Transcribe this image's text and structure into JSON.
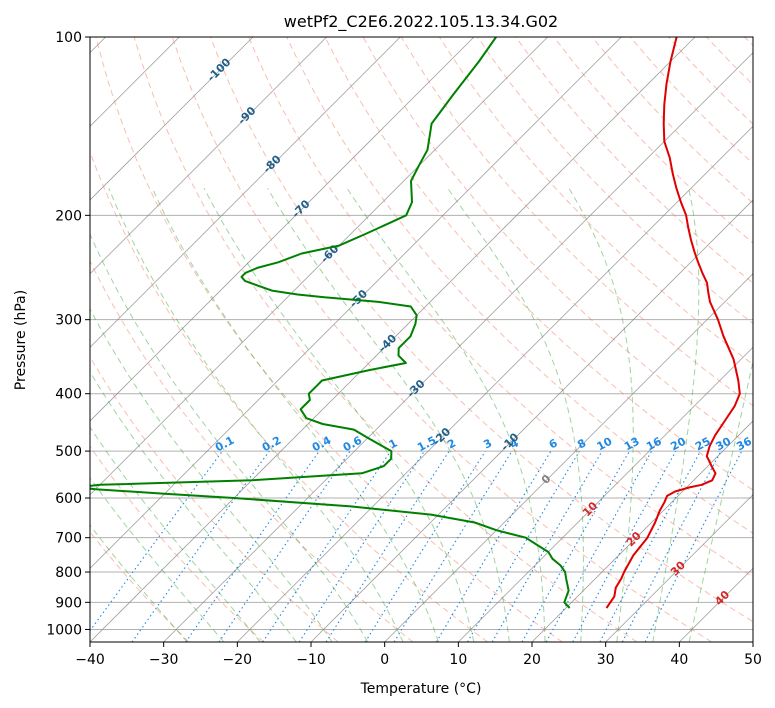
{
  "chart_data": {
    "type": "line",
    "title": "wetPf2_C2E6.2022.105.13.34.G02",
    "xlabel": "Temperature (°C)",
    "ylabel": "Pressure (hPa)",
    "xlim": [
      -40,
      50
    ],
    "ylim": [
      1050,
      100
    ],
    "x_ticks": [
      -40,
      -30,
      -20,
      -10,
      0,
      10,
      20,
      30,
      40,
      50
    ],
    "x_tick_labels": [
      "−40",
      "−30",
      "−20",
      "−10",
      "0",
      "10",
      "20",
      "30",
      "40",
      "50"
    ],
    "y_ticks": [
      100,
      200,
      300,
      400,
      500,
      600,
      700,
      800,
      900,
      1000
    ],
    "y_tick_labels": [
      "100",
      "200",
      "300",
      "400",
      "500",
      "600",
      "700",
      "800",
      "900",
      "1000"
    ],
    "grid": true,
    "colors": {
      "temperature": "#e00000",
      "dewpoint": "#008000",
      "dry_adiabat": "#f08060",
      "moist_adiabat": "#2ca02c",
      "mixing_ratio": "#1e88e5",
      "isotherm": "#808080",
      "isotherm_label": "#1f5f8b",
      "positive_label": "#d62728",
      "zero_label": "#808080",
      "mixing_label": "#1e88e5"
    },
    "isotherm_labels": [
      "-100",
      "-90",
      "-80",
      "-70",
      "-60",
      "-50",
      "-40",
      "-30",
      "-20",
      "-10",
      "0",
      "10",
      "20",
      "30",
      "40"
    ],
    "isotherm_label_values": [
      -100,
      -90,
      -80,
      -70,
      -60,
      -50,
      -40,
      -30,
      -20,
      -10,
      0,
      10,
      20,
      30,
      40
    ],
    "mixing_ratio_labels": [
      "0.1",
      "0.2",
      "0.4",
      "0.6",
      "1",
      "1.5",
      "2",
      "3",
      "4",
      "6",
      "8",
      "10",
      "13",
      "16",
      "20",
      "25",
      "30",
      "36"
    ],
    "mixing_ratio_values": [
      0.1,
      0.2,
      0.4,
      0.6,
      1,
      1.5,
      2,
      3,
      4,
      6,
      8,
      10,
      13,
      16,
      20,
      25,
      30,
      36
    ],
    "series": [
      {
        "name": "Temperature",
        "pressure": [
          920,
          880,
          850,
          820,
          800,
          750,
          700,
          660,
          630,
          610,
          595,
          585,
          575,
          570,
          560,
          545,
          530,
          510,
          490,
          470,
          450,
          420,
          400,
          380,
          350,
          320,
          300,
          280,
          270,
          260,
          250,
          240,
          230,
          220,
          210,
          200,
          190,
          180,
          170,
          160,
          150,
          140,
          130,
          120,
          110,
          100
        ],
        "temp": [
          25.5,
          25,
          24,
          23.5,
          23,
          22,
          21.5,
          20.5,
          19.5,
          19,
          18.5,
          19,
          20.5,
          21.7,
          22.5,
          22,
          20.5,
          18.5,
          17.5,
          16.8,
          16.3,
          15.5,
          14.5,
          12.5,
          9,
          4.5,
          1.5,
          -2,
          -3.5,
          -5,
          -7,
          -9,
          -11,
          -13,
          -15,
          -17,
          -19.5,
          -22,
          -24.5,
          -27,
          -30,
          -32.5,
          -35,
          -37.5,
          -40,
          -42.5
        ]
      },
      {
        "name": "Dewpoint",
        "pressure": [
          920,
          900,
          880,
          860,
          850,
          820,
          800,
          780,
          760,
          740,
          720,
          700,
          680,
          660,
          640,
          620,
          600,
          590,
          580,
          575,
          570,
          560,
          545,
          530,
          515,
          500,
          490,
          475,
          460,
          450,
          440,
          425,
          410,
          400,
          390,
          380,
          365,
          355,
          345,
          335,
          320,
          305,
          295,
          285,
          280,
          275,
          272,
          268,
          262,
          258,
          254,
          250,
          245,
          240,
          232,
          225,
          215,
          205,
          200,
          190,
          175,
          165,
          155,
          140,
          125,
          110,
          100
        ],
        "temp": [
          20.5,
          19,
          18.5,
          18,
          17.5,
          16,
          15,
          13.5,
          11.5,
          10,
          7.5,
          5,
          0,
          -4,
          -11,
          -23,
          -40,
          -50,
          -60,
          -62.5,
          -60,
          -40,
          -26,
          -24,
          -24,
          -25,
          -27,
          -30,
          -33,
          -38,
          -41,
          -43,
          -43,
          -44,
          -44,
          -44,
          -39,
          -35,
          -37,
          -38,
          -38,
          -39,
          -40,
          -42,
          -47,
          -55,
          -59,
          -63,
          -66,
          -68,
          -69,
          -69,
          -68,
          -66,
          -64,
          -60,
          -58,
          -56,
          -55,
          -56,
          -59,
          -60,
          -61,
          -64,
          -65,
          -66,
          -67
        ]
      }
    ]
  }
}
